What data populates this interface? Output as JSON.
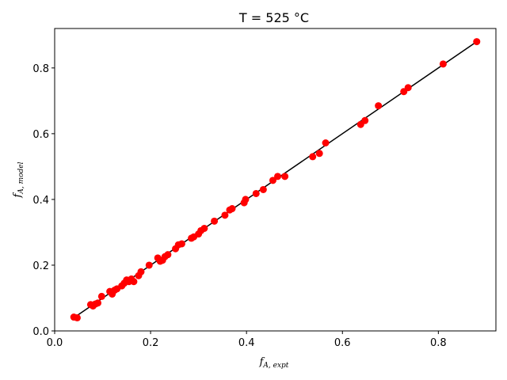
{
  "chart_data": {
    "type": "scatter",
    "title": "T = 525 °C",
    "xlabel": {
      "main": "f",
      "sub": "A, expt"
    },
    "ylabel": {
      "main": "f",
      "sub": "A, model"
    },
    "xlim": [
      0.0,
      0.92
    ],
    "ylim": [
      0.0,
      0.92
    ],
    "xticks": [
      0.0,
      0.2,
      0.4,
      0.6,
      0.8
    ],
    "yticks": [
      0.0,
      0.2,
      0.4,
      0.6,
      0.8
    ],
    "xtick_labels": [
      "0.0",
      "0.2",
      "0.4",
      "0.6",
      "0.8"
    ],
    "ytick_labels": [
      "0.0",
      "0.2",
      "0.4",
      "0.6",
      "0.8"
    ],
    "grid": false,
    "legend": "none",
    "marker_color": "#ff0000",
    "line_color": "#000000",
    "fit_line": {
      "x": [
        0.04,
        0.88
      ],
      "y": [
        0.04,
        0.88
      ]
    },
    "series": [
      {
        "x": [
          0.04,
          0.047,
          0.075,
          0.08,
          0.085,
          0.09,
          0.098,
          0.115,
          0.12,
          0.125,
          0.13,
          0.14,
          0.145,
          0.15,
          0.155,
          0.16,
          0.165,
          0.175,
          0.18,
          0.197,
          0.215,
          0.22,
          0.225,
          0.23,
          0.236,
          0.252,
          0.258,
          0.265,
          0.285,
          0.29,
          0.3,
          0.305,
          0.312,
          0.333,
          0.355,
          0.365,
          0.37,
          0.395,
          0.398,
          0.42,
          0.435,
          0.455,
          0.465,
          0.48,
          0.538,
          0.552,
          0.565,
          0.638,
          0.647,
          0.675,
          0.728,
          0.737,
          0.81,
          0.88
        ],
        "y": [
          0.042,
          0.04,
          0.08,
          0.076,
          0.082,
          0.085,
          0.105,
          0.12,
          0.112,
          0.124,
          0.128,
          0.137,
          0.145,
          0.155,
          0.15,
          0.158,
          0.15,
          0.168,
          0.18,
          0.2,
          0.222,
          0.212,
          0.215,
          0.226,
          0.232,
          0.25,
          0.262,
          0.265,
          0.282,
          0.286,
          0.295,
          0.305,
          0.312,
          0.334,
          0.352,
          0.368,
          0.372,
          0.39,
          0.4,
          0.418,
          0.43,
          0.458,
          0.47,
          0.47,
          0.53,
          0.54,
          0.572,
          0.628,
          0.64,
          0.685,
          0.728,
          0.74,
          0.812,
          0.88
        ]
      }
    ]
  }
}
